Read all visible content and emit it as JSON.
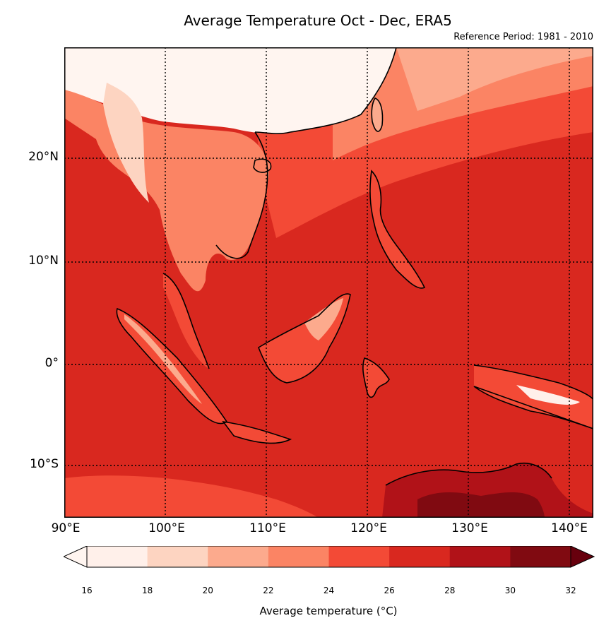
{
  "title": "Average Temperature Oct - Dec, ERA5",
  "subtitle": "Reference Period: 1981 - 2010",
  "map": {
    "extent": {
      "lon_min": 90,
      "lon_max": 142.5,
      "lat_min": -15,
      "lat_max": 31
    },
    "gridlines": "dotted",
    "lat_labels": [
      {
        "lat": 20,
        "text": "20°N"
      },
      {
        "lat": 10,
        "text": "10°N"
      },
      {
        "lat": 0,
        "text": "0°"
      },
      {
        "lat": -10,
        "text": "10°S"
      }
    ],
    "lon_labels": [
      {
        "lon": 90,
        "text": "90°E"
      },
      {
        "lon": 100,
        "text": "100°E"
      },
      {
        "lon": 110,
        "text": "110°E"
      },
      {
        "lon": 120,
        "text": "120°E"
      },
      {
        "lon": 130,
        "text": "130°E"
      },
      {
        "lon": 140,
        "text": "140°E"
      }
    ]
  },
  "colorbar": {
    "label": "Average temperature (°C)",
    "ticks": [
      "16",
      "18",
      "20",
      "22",
      "24",
      "26",
      "28",
      "30",
      "32"
    ],
    "colors": [
      "#fff0ea",
      "#fdd4c1",
      "#fcaa8d",
      "#fb8464",
      "#f34a36",
      "#d9281f",
      "#b11218",
      "#800a11"
    ],
    "under_color": "#fff5f0",
    "over_color": "#67000d",
    "extend": "both"
  }
}
